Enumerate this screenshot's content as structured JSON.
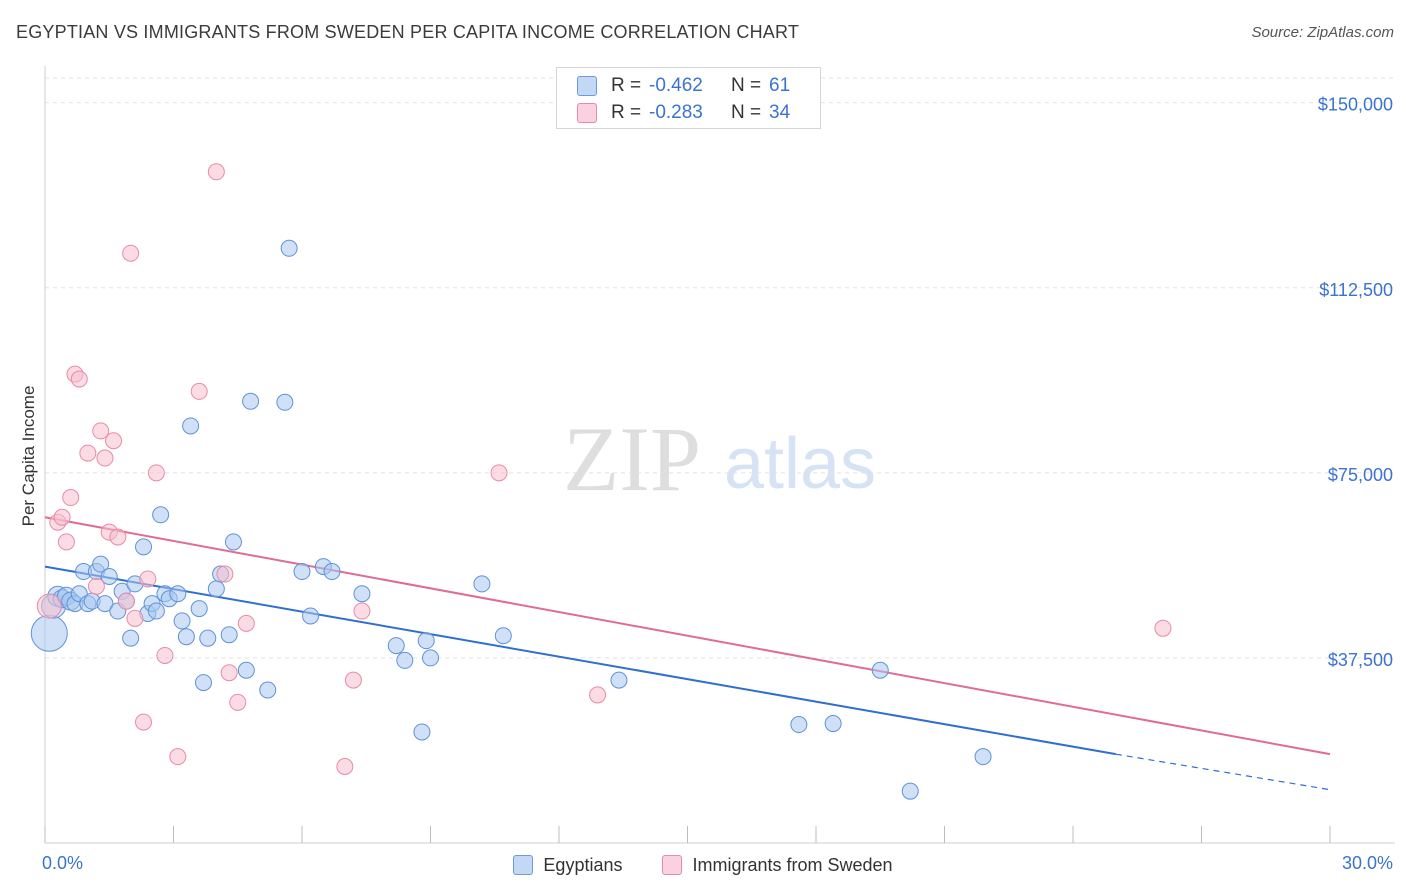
{
  "header": {
    "title": "EGYPTIAN VS IMMIGRANTS FROM SWEDEN PER CAPITA INCOME CORRELATION CHART",
    "source": "Source: ZipAtlas.com"
  },
  "watermark": {
    "zip": "ZIP",
    "atlas": "atlas"
  },
  "colors": {
    "egyptians_fill": "#a9c8f0",
    "egyptians_stroke": "#5f92d8",
    "egyptians_line": "#2f6fd0",
    "sweden_fill": "#f7bfd0",
    "sweden_stroke": "#e98aa8",
    "sweden_line": "#e06b96",
    "tick_label": "#3a73d0"
  },
  "stats": {
    "rows": [
      {
        "r_label": "R =",
        "r_value": "-0.462",
        "n_label": "N =",
        "n_value": "61"
      },
      {
        "r_label": "R =",
        "r_value": "-0.283",
        "n_label": "N =",
        "n_value": "34"
      }
    ]
  },
  "legend": {
    "egyptians": "Egyptians",
    "sweden": "Immigrants from Sweden"
  },
  "chart_data": {
    "type": "scatter",
    "title": "EGYPTIAN VS IMMIGRANTS FROM SWEDEN PER CAPITA INCOME CORRELATION CHART",
    "xlabel": "",
    "ylabel": "Per Capita Income",
    "xlim": [
      0,
      30
    ],
    "ylim": [
      0,
      155000
    ],
    "x_tick_labels": [
      "0.0%",
      "30.0%"
    ],
    "y_ticks": [
      37500,
      75000,
      112500,
      150000
    ],
    "y_tick_labels": [
      "$37,500",
      "$75,000",
      "$112,500",
      "$150,000"
    ],
    "grid": true,
    "legend_position": "bottom",
    "series": [
      {
        "name": "Egyptians",
        "points": [
          [
            0.1,
            42500,
            18
          ],
          [
            0.2,
            48000,
            12
          ],
          [
            0.3,
            50000,
            10
          ],
          [
            0.4,
            49500,
            9
          ],
          [
            0.5,
            50000,
            9
          ],
          [
            0.6,
            49000,
            9
          ],
          [
            0.7,
            48500,
            8
          ],
          [
            0.8,
            50500,
            8
          ],
          [
            0.9,
            55000,
            8
          ],
          [
            1.0,
            48500,
            8
          ],
          [
            1.1,
            49000,
            8
          ],
          [
            1.2,
            55000,
            8
          ],
          [
            1.3,
            56500,
            8
          ],
          [
            1.4,
            48500,
            8
          ],
          [
            1.5,
            54000,
            8
          ],
          [
            1.7,
            47000,
            8
          ],
          [
            1.8,
            51000,
            8
          ],
          [
            1.9,
            49000,
            8
          ],
          [
            2.0,
            41500,
            8
          ],
          [
            2.1,
            52500,
            8
          ],
          [
            2.3,
            60000,
            8
          ],
          [
            2.4,
            46500,
            8
          ],
          [
            2.5,
            48500,
            8
          ],
          [
            2.6,
            47000,
            8
          ],
          [
            2.7,
            66500,
            8
          ],
          [
            2.8,
            50500,
            8
          ],
          [
            2.9,
            49500,
            8
          ],
          [
            3.1,
            50500,
            8
          ],
          [
            3.2,
            45000,
            8
          ],
          [
            3.3,
            41800,
            8
          ],
          [
            3.4,
            84500,
            8
          ],
          [
            3.6,
            47500,
            8
          ],
          [
            3.7,
            32500,
            8
          ],
          [
            3.8,
            41500,
            8
          ],
          [
            4.0,
            51500,
            8
          ],
          [
            4.1,
            54500,
            8
          ],
          [
            4.3,
            42200,
            8
          ],
          [
            4.4,
            61000,
            8
          ],
          [
            4.7,
            35000,
            8
          ],
          [
            4.8,
            89500,
            8
          ],
          [
            5.2,
            31000,
            8
          ],
          [
            5.6,
            89300,
            8
          ],
          [
            5.7,
            120500,
            8
          ],
          [
            6.0,
            55000,
            8
          ],
          [
            6.2,
            46000,
            8
          ],
          [
            6.5,
            56000,
            8
          ],
          [
            6.7,
            55000,
            8
          ],
          [
            7.4,
            50500,
            8
          ],
          [
            8.2,
            40000,
            8
          ],
          [
            8.4,
            37000,
            8
          ],
          [
            8.8,
            22500,
            8
          ],
          [
            8.9,
            41000,
            8
          ],
          [
            9.0,
            37500,
            8
          ],
          [
            10.2,
            52500,
            8
          ],
          [
            10.7,
            42000,
            8
          ],
          [
            13.4,
            33000,
            8
          ],
          [
            17.6,
            24000,
            8
          ],
          [
            18.4,
            24200,
            8
          ],
          [
            19.5,
            35000,
            8
          ],
          [
            20.2,
            10500,
            8
          ],
          [
            21.9,
            17500,
            8
          ]
        ]
      },
      {
        "name": "Immigrants from Sweden",
        "points": [
          [
            0.1,
            48000,
            12
          ],
          [
            0.3,
            65000,
            8
          ],
          [
            0.4,
            66000,
            8
          ],
          [
            0.5,
            61000,
            8
          ],
          [
            0.6,
            70000,
            8
          ],
          [
            0.7,
            95000,
            8
          ],
          [
            0.8,
            94000,
            8
          ],
          [
            1.0,
            79000,
            8
          ],
          [
            1.2,
            52000,
            8
          ],
          [
            1.3,
            83500,
            8
          ],
          [
            1.4,
            78000,
            8
          ],
          [
            1.5,
            63000,
            8
          ],
          [
            1.6,
            81500,
            8
          ],
          [
            1.7,
            62000,
            8
          ],
          [
            1.9,
            49000,
            8
          ],
          [
            2.0,
            119500,
            8
          ],
          [
            2.1,
            45500,
            8
          ],
          [
            2.3,
            24500,
            8
          ],
          [
            2.4,
            53500,
            8
          ],
          [
            2.6,
            75000,
            8
          ],
          [
            2.8,
            38000,
            8
          ],
          [
            3.1,
            17500,
            8
          ],
          [
            3.6,
            91500,
            8
          ],
          [
            4.0,
            136000,
            8
          ],
          [
            4.2,
            54500,
            8
          ],
          [
            4.3,
            34500,
            8
          ],
          [
            4.5,
            28500,
            8
          ],
          [
            4.7,
            44500,
            8
          ],
          [
            7.0,
            15500,
            8
          ],
          [
            7.2,
            33000,
            8
          ],
          [
            7.4,
            47000,
            8
          ],
          [
            10.6,
            75000,
            8
          ],
          [
            12.9,
            30000,
            8
          ],
          [
            26.1,
            43500,
            8
          ]
        ]
      }
    ],
    "trendlines": [
      {
        "name": "Egyptians",
        "x_start": 0,
        "y_start": 56000,
        "x_end": 25.0,
        "y_end": 18000,
        "x_dash_end": 30,
        "y_dash_end": 10800
      },
      {
        "name": "Immigrants from Sweden",
        "x_start": 0,
        "y_start": 66000,
        "x_end": 30,
        "y_end": 18000
      }
    ]
  }
}
